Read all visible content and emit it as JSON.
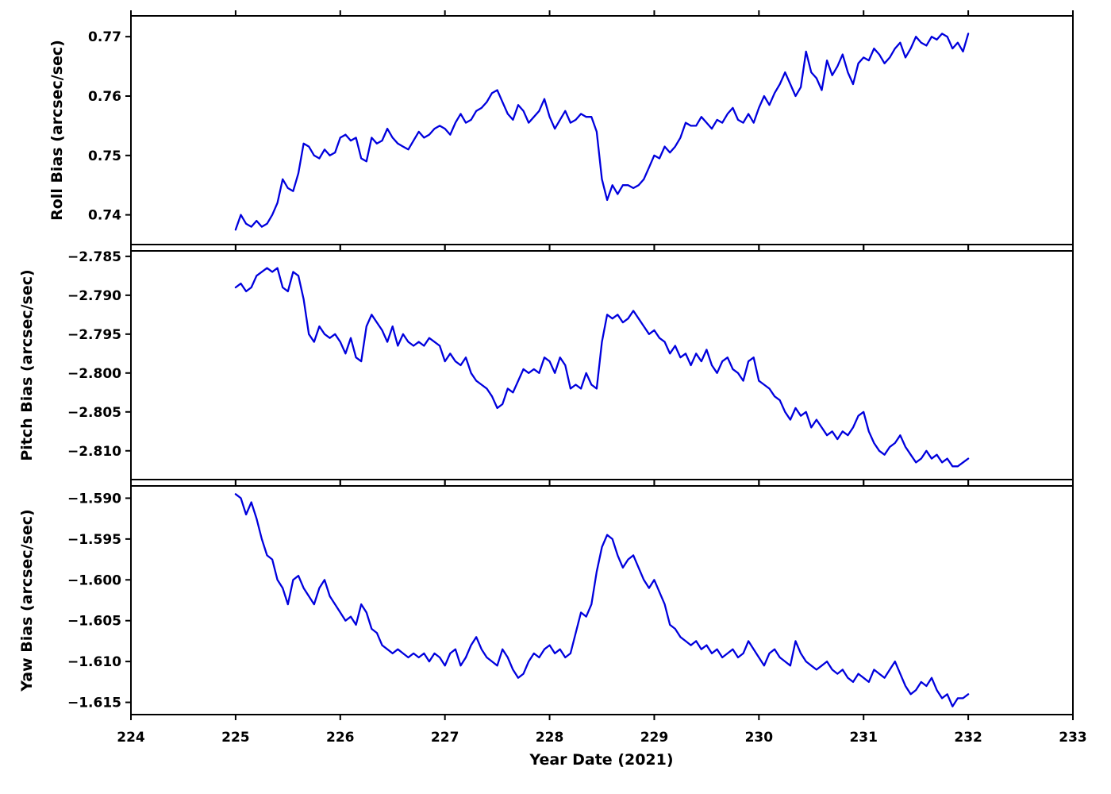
{
  "figure": {
    "background": "#ffffff"
  },
  "chart_data": {
    "type": "line",
    "title": "",
    "x_label": "Year Date (2021)",
    "x_lim": [
      224,
      233
    ],
    "x_ticks": [
      224,
      225,
      226,
      227,
      228,
      229,
      230,
      231,
      232,
      233
    ],
    "x_tick_labels": [
      "224",
      "225",
      "226",
      "227",
      "228",
      "229",
      "230",
      "231",
      "232",
      "233"
    ],
    "grid": false,
    "legend": null,
    "line_color": "#0000dd",
    "axis_color": "#000000",
    "x": {
      "start": 225.0,
      "step": 0.05,
      "end": 232.0
    },
    "subplots": [
      {
        "id": "roll",
        "ylabel": "Roll Bias (arcsec/sec)",
        "ylim": [
          0.735,
          0.7735
        ],
        "yticks": [
          0.74,
          0.75,
          0.76,
          0.77
        ],
        "ytick_labels": [
          "0.74",
          "0.75",
          "0.76",
          "0.77"
        ],
        "values": [
          0.7375,
          0.74,
          0.7385,
          0.738,
          0.739,
          0.738,
          0.7385,
          0.74,
          0.742,
          0.746,
          0.7445,
          0.744,
          0.747,
          0.752,
          0.7515,
          0.75,
          0.7495,
          0.751,
          0.75,
          0.7505,
          0.753,
          0.7535,
          0.7525,
          0.753,
          0.7495,
          0.749,
          0.753,
          0.752,
          0.7525,
          0.7545,
          0.753,
          0.752,
          0.7515,
          0.751,
          0.7525,
          0.754,
          0.753,
          0.7535,
          0.7545,
          0.755,
          0.7545,
          0.7535,
          0.7555,
          0.757,
          0.7555,
          0.756,
          0.7575,
          0.758,
          0.759,
          0.7605,
          0.761,
          0.759,
          0.757,
          0.756,
          0.7585,
          0.7575,
          0.7555,
          0.7565,
          0.7575,
          0.7595,
          0.7565,
          0.7545,
          0.756,
          0.7575,
          0.7555,
          0.756,
          0.757,
          0.7565,
          0.7565,
          0.754,
          0.746,
          0.7425,
          0.745,
          0.7435,
          0.745,
          0.745,
          0.7445,
          0.745,
          0.746,
          0.748,
          0.75,
          0.7495,
          0.7515,
          0.7505,
          0.7515,
          0.753,
          0.7555,
          0.755,
          0.755,
          0.7565,
          0.7555,
          0.7545,
          0.756,
          0.7555,
          0.757,
          0.758,
          0.756,
          0.7555,
          0.757,
          0.7555,
          0.758,
          0.76,
          0.7585,
          0.7605,
          0.762,
          0.764,
          0.762,
          0.76,
          0.7615,
          0.7675,
          0.764,
          0.763,
          0.761,
          0.766,
          0.7635,
          0.765,
          0.767,
          0.764,
          0.762,
          0.7655,
          0.7665,
          0.766,
          0.768,
          0.767,
          0.7655,
          0.7665,
          0.768,
          0.769,
          0.7665,
          0.768,
          0.77,
          0.769,
          0.7685,
          0.77,
          0.7695,
          0.7705,
          0.77,
          0.768,
          0.769,
          0.7675,
          0.7705
        ]
      },
      {
        "id": "pitch",
        "ylabel": "Pitch Bias (arcsec/sec)",
        "ylim": [
          -2.8137,
          -2.7843
        ],
        "yticks": [
          -2.785,
          -2.79,
          -2.795,
          -2.8,
          -2.805,
          -2.81
        ],
        "ytick_labels": [
          "−2.785",
          "−2.790",
          "−2.795",
          "−2.800",
          "−2.805",
          "−2.810"
        ],
        "values": [
          -2.789,
          -2.7885,
          -2.7895,
          -2.789,
          -2.7875,
          -2.787,
          -2.7865,
          -2.787,
          -2.7865,
          -2.789,
          -2.7895,
          -2.787,
          -2.7875,
          -2.7905,
          -2.795,
          -2.796,
          -2.794,
          -2.795,
          -2.7955,
          -2.795,
          -2.796,
          -2.7975,
          -2.7955,
          -2.798,
          -2.7985,
          -2.794,
          -2.7925,
          -2.7935,
          -2.7945,
          -2.796,
          -2.794,
          -2.7965,
          -2.795,
          -2.796,
          -2.7965,
          -2.796,
          -2.7965,
          -2.7955,
          -2.796,
          -2.7965,
          -2.7985,
          -2.7975,
          -2.7985,
          -2.799,
          -2.798,
          -2.8,
          -2.801,
          -2.8015,
          -2.802,
          -2.803,
          -2.8045,
          -2.804,
          -2.802,
          -2.8025,
          -2.801,
          -2.7995,
          -2.8,
          -2.7995,
          -2.8,
          -2.798,
          -2.7985,
          -2.8,
          -2.798,
          -2.799,
          -2.802,
          -2.8015,
          -2.802,
          -2.8,
          -2.8015,
          -2.802,
          -2.796,
          -2.7925,
          -2.793,
          -2.7925,
          -2.7935,
          -2.793,
          -2.792,
          -2.793,
          -2.794,
          -2.795,
          -2.7945,
          -2.7955,
          -2.796,
          -2.7975,
          -2.7965,
          -2.798,
          -2.7975,
          -2.799,
          -2.7975,
          -2.7985,
          -2.797,
          -2.799,
          -2.8,
          -2.7985,
          -2.798,
          -2.7995,
          -2.8,
          -2.801,
          -2.7985,
          -2.798,
          -2.801,
          -2.8015,
          -2.802,
          -2.803,
          -2.8035,
          -2.805,
          -2.806,
          -2.8045,
          -2.8055,
          -2.805,
          -2.807,
          -2.806,
          -2.807,
          -2.808,
          -2.8075,
          -2.8085,
          -2.8075,
          -2.808,
          -2.807,
          -2.8055,
          -2.805,
          -2.8075,
          -2.809,
          -2.81,
          -2.8105,
          -2.8095,
          -2.809,
          -2.808,
          -2.8095,
          -2.8105,
          -2.8115,
          -2.811,
          -2.81,
          -2.811,
          -2.8105,
          -2.8115,
          -2.811,
          -2.812,
          -2.812,
          -2.8115,
          -2.811
        ]
      },
      {
        "id": "yaw",
        "ylabel": "Yaw Bias (arcsec/sec)",
        "ylim": [
          -1.6165,
          -1.5885
        ],
        "yticks": [
          -1.59,
          -1.595,
          -1.6,
          -1.605,
          -1.61,
          -1.615
        ],
        "ytick_labels": [
          "−1.590",
          "−1.595",
          "−1.600",
          "−1.605",
          "−1.610",
          "−1.615"
        ],
        "values": [
          -1.5895,
          -1.59,
          -1.592,
          -1.5905,
          -1.5925,
          -1.595,
          -1.597,
          -1.5975,
          -1.6,
          -1.601,
          -1.603,
          -1.6,
          -1.5995,
          -1.601,
          -1.602,
          -1.603,
          -1.601,
          -1.6,
          -1.602,
          -1.603,
          -1.604,
          -1.605,
          -1.6045,
          -1.6055,
          -1.603,
          -1.604,
          -1.606,
          -1.6065,
          -1.608,
          -1.6085,
          -1.609,
          -1.6085,
          -1.609,
          -1.6095,
          -1.609,
          -1.6095,
          -1.609,
          -1.61,
          -1.609,
          -1.6095,
          -1.6105,
          -1.609,
          -1.6085,
          -1.6105,
          -1.6095,
          -1.608,
          -1.607,
          -1.6085,
          -1.6095,
          -1.61,
          -1.6105,
          -1.6085,
          -1.6095,
          -1.611,
          -1.612,
          -1.6115,
          -1.61,
          -1.609,
          -1.6095,
          -1.6085,
          -1.608,
          -1.609,
          -1.6085,
          -1.6095,
          -1.609,
          -1.6065,
          -1.604,
          -1.6045,
          -1.603,
          -1.599,
          -1.596,
          -1.5945,
          -1.595,
          -1.597,
          -1.5985,
          -1.5975,
          -1.597,
          -1.5985,
          -1.6,
          -1.601,
          -1.6,
          -1.6015,
          -1.603,
          -1.6055,
          -1.606,
          -1.607,
          -1.6075,
          -1.608,
          -1.6075,
          -1.6085,
          -1.608,
          -1.609,
          -1.6085,
          -1.6095,
          -1.609,
          -1.6085,
          -1.6095,
          -1.609,
          -1.6075,
          -1.6085,
          -1.6095,
          -1.6105,
          -1.609,
          -1.6085,
          -1.6095,
          -1.61,
          -1.6105,
          -1.6075,
          -1.609,
          -1.61,
          -1.6105,
          -1.611,
          -1.6105,
          -1.61,
          -1.611,
          -1.6115,
          -1.611,
          -1.612,
          -1.6125,
          -1.6115,
          -1.612,
          -1.6125,
          -1.611,
          -1.6115,
          -1.612,
          -1.611,
          -1.61,
          -1.6115,
          -1.613,
          -1.614,
          -1.6135,
          -1.6125,
          -1.613,
          -1.612,
          -1.6135,
          -1.6145,
          -1.614,
          -1.6155,
          -1.6145,
          -1.6145,
          -1.614
        ]
      }
    ]
  }
}
